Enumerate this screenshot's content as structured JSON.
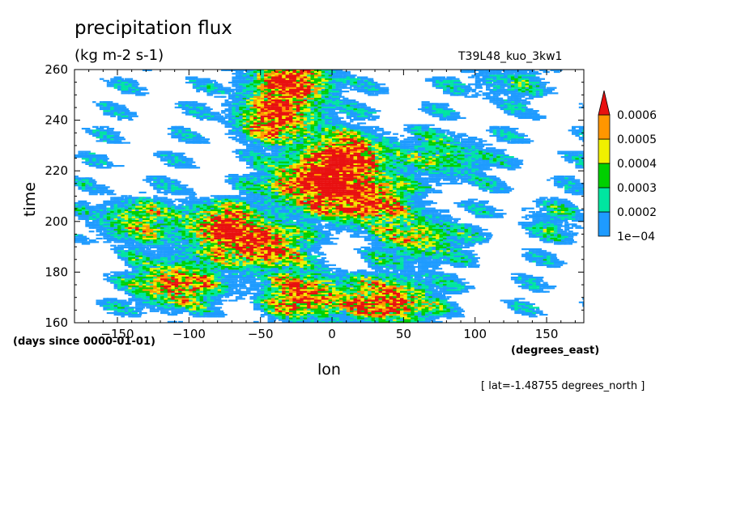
{
  "header": {
    "title": "precipitation flux",
    "units": "(kg m-2 s-1)",
    "run_name": "T39L48_kuo_3kw1"
  },
  "footer": {
    "slice": "[ lat=-1.48755 degrees_north ]"
  },
  "colors": {
    "c1": "#1e9bff",
    "c2": "#00e6a0",
    "c3": "#00d000",
    "c4": "#f0f000",
    "c5": "#ff9600",
    "c6": "#e81010"
  },
  "chart_data": {
    "type": "heatmap",
    "title": "precipitation flux",
    "subtitle": "(kg m-2 s-1)",
    "xlabel": "lon",
    "ylabel": "time",
    "x_units": "(degrees_east)",
    "y_units": "(days since 0000-01-01)",
    "xlim": [
      -180,
      176
    ],
    "ylim": [
      160,
      260
    ],
    "xticks": [
      -150,
      -100,
      -50,
      0,
      50,
      100,
      150
    ],
    "yticks": [
      160,
      180,
      200,
      220,
      240,
      260
    ],
    "colorbar": {
      "levels": [
        "1e-04",
        "0.0002",
        "0.0003",
        "0.0004",
        "0.0005",
        "0.0006"
      ],
      "colors": [
        "#1e9bff",
        "#00e6a0",
        "#00d000",
        "#f0f000",
        "#ff9600",
        "#e81010"
      ],
      "extend": "max"
    },
    "features": [
      {
        "lon": -30,
        "t": 255,
        "value": 0.00065
      },
      {
        "lon": -40,
        "t": 240,
        "value": 0.0006
      },
      {
        "lon": 10,
        "t": 225,
        "value": 0.00068
      },
      {
        "lon": 20,
        "t": 208,
        "value": 0.0007
      },
      {
        "lon": -20,
        "t": 215,
        "value": 0.00062
      },
      {
        "lon": -80,
        "t": 198,
        "value": 0.00055
      },
      {
        "lon": -50,
        "t": 190,
        "value": 0.0006
      },
      {
        "lon": -110,
        "t": 175,
        "value": 0.00058
      },
      {
        "lon": -20,
        "t": 170,
        "value": 0.0006
      },
      {
        "lon": 40,
        "t": 168,
        "value": 0.00062
      },
      {
        "lon": 60,
        "t": 193,
        "value": 0.0004
      },
      {
        "lon": -140,
        "t": 200,
        "value": 0.00035
      },
      {
        "lon": 80,
        "t": 225,
        "value": 0.0003
      },
      {
        "lon": 120,
        "t": 255,
        "value": 0.00018
      },
      {
        "lon": 150,
        "t": 200,
        "value": 0.00015
      }
    ]
  }
}
